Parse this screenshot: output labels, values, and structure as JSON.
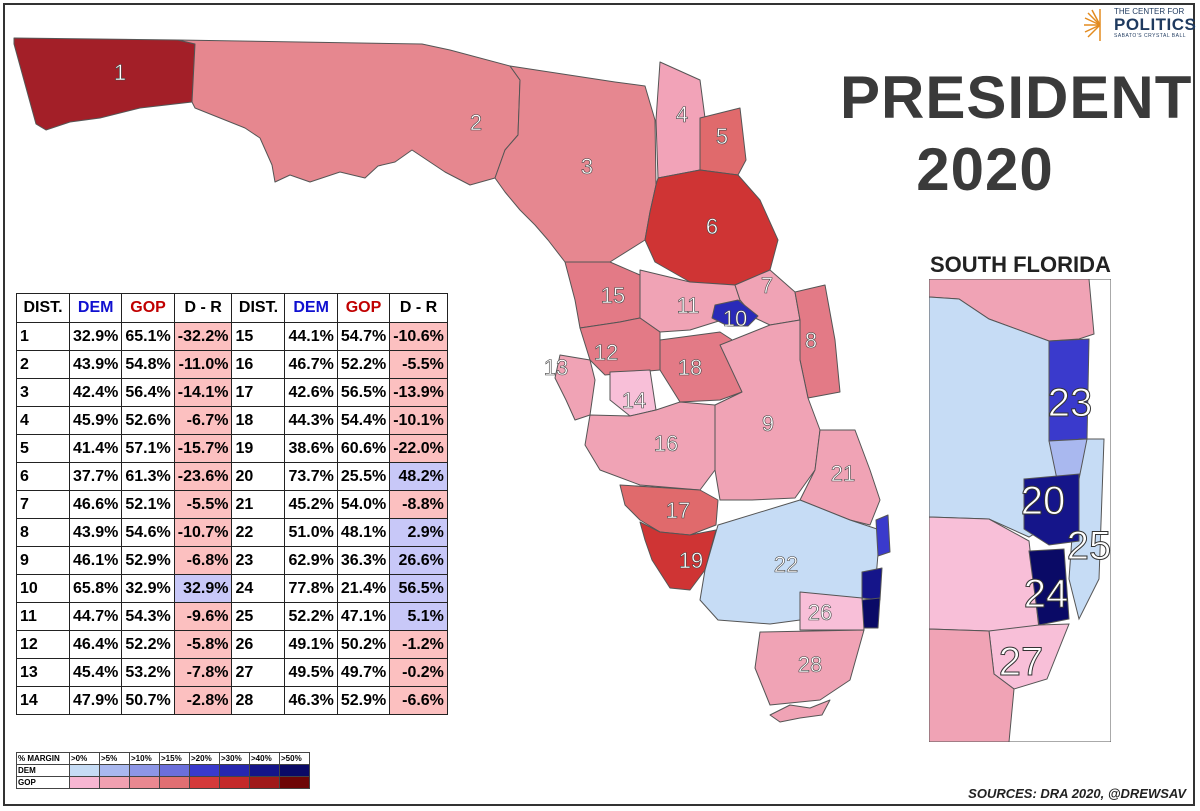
{
  "title": "PRESIDENT 2020",
  "title_line1": "PRESIDENT",
  "title_line2": "2020",
  "inset_title": "SOUTH FLORIDA",
  "sources": "SOURCES: DRA 2020, @DREWSAV",
  "logo": {
    "line1": "THE CENTER FOR",
    "line2": "POLITICS",
    "line3": "SABATO'S CRYSTAL BALL"
  },
  "table": {
    "headers": [
      "DIST.",
      "DEM",
      "GOP",
      "D - R"
    ],
    "rows": [
      {
        "dist": "1",
        "dem": "32.9%",
        "gop": "65.1%",
        "margin": "-32.2%"
      },
      {
        "dist": "2",
        "dem": "43.9%",
        "gop": "54.8%",
        "margin": "-11.0%"
      },
      {
        "dist": "3",
        "dem": "42.4%",
        "gop": "56.4%",
        "margin": "-14.1%"
      },
      {
        "dist": "4",
        "dem": "45.9%",
        "gop": "52.6%",
        "margin": "-6.7%"
      },
      {
        "dist": "5",
        "dem": "41.4%",
        "gop": "57.1%",
        "margin": "-15.7%"
      },
      {
        "dist": "6",
        "dem": "37.7%",
        "gop": "61.3%",
        "margin": "-23.6%"
      },
      {
        "dist": "7",
        "dem": "46.6%",
        "gop": "52.1%",
        "margin": "-5.5%"
      },
      {
        "dist": "8",
        "dem": "43.9%",
        "gop": "54.6%",
        "margin": "-10.7%"
      },
      {
        "dist": "9",
        "dem": "46.1%",
        "gop": "52.9%",
        "margin": "-6.8%"
      },
      {
        "dist": "10",
        "dem": "65.8%",
        "gop": "32.9%",
        "margin": "32.9%"
      },
      {
        "dist": "11",
        "dem": "44.7%",
        "gop": "54.3%",
        "margin": "-9.6%"
      },
      {
        "dist": "12",
        "dem": "46.4%",
        "gop": "52.2%",
        "margin": "-5.8%"
      },
      {
        "dist": "13",
        "dem": "45.4%",
        "gop": "53.2%",
        "margin": "-7.8%"
      },
      {
        "dist": "14",
        "dem": "47.9%",
        "gop": "50.7%",
        "margin": "-2.8%"
      },
      {
        "dist": "15",
        "dem": "44.1%",
        "gop": "54.7%",
        "margin": "-10.6%"
      },
      {
        "dist": "16",
        "dem": "46.7%",
        "gop": "52.2%",
        "margin": "-5.5%"
      },
      {
        "dist": "17",
        "dem": "42.6%",
        "gop": "56.5%",
        "margin": "-13.9%"
      },
      {
        "dist": "18",
        "dem": "44.3%",
        "gop": "54.4%",
        "margin": "-10.1%"
      },
      {
        "dist": "19",
        "dem": "38.6%",
        "gop": "60.6%",
        "margin": "-22.0%"
      },
      {
        "dist": "20",
        "dem": "73.7%",
        "gop": "25.5%",
        "margin": "48.2%"
      },
      {
        "dist": "21",
        "dem": "45.2%",
        "gop": "54.0%",
        "margin": "-8.8%"
      },
      {
        "dist": "22",
        "dem": "51.0%",
        "gop": "48.1%",
        "margin": "2.9%"
      },
      {
        "dist": "23",
        "dem": "62.9%",
        "gop": "36.3%",
        "margin": "26.6%"
      },
      {
        "dist": "24",
        "dem": "77.8%",
        "gop": "21.4%",
        "margin": "56.5%"
      },
      {
        "dist": "25",
        "dem": "52.2%",
        "gop": "47.1%",
        "margin": "5.1%"
      },
      {
        "dist": "26",
        "dem": "49.1%",
        "gop": "50.2%",
        "margin": "-1.2%"
      },
      {
        "dist": "27",
        "dem": "49.5%",
        "gop": "49.7%",
        "margin": "-0.2%"
      },
      {
        "dist": "28",
        "dem": "46.3%",
        "gop": "52.9%",
        "margin": "-6.6%"
      }
    ]
  },
  "legend": {
    "header": "% MARGIN",
    "bins": [
      ">0%",
      ">5%",
      ">10%",
      ">15%",
      ">20%",
      ">30%",
      ">40%",
      ">50%"
    ],
    "dem_label": "DEM",
    "gop_label": "GOP",
    "dem_colors": [
      "#c6dcf5",
      "#a9b8ef",
      "#8d96e6",
      "#6b6fdb",
      "#3a3acc",
      "#2727b0",
      "#15158a",
      "#0a0a66"
    ],
    "gop_colors": [
      "#f7b6d2",
      "#f0a0b0",
      "#e98890",
      "#e06f72",
      "#d43a3a",
      "#c42a2a",
      "#a01a1a",
      "#6e0606"
    ]
  },
  "map_labels": [
    "1",
    "2",
    "3",
    "4",
    "5",
    "6",
    "7",
    "8",
    "9",
    "10",
    "11",
    "12",
    "13",
    "14",
    "15",
    "16",
    "17",
    "18",
    "19",
    "21",
    "22",
    "26",
    "28"
  ],
  "inset_labels": [
    "23",
    "20",
    "25",
    "24",
    "27"
  ],
  "colors": {
    "dem_header": "#1010d0",
    "gop_header": "#c00000",
    "neg_cell": "#fcc0c0",
    "pos_cell": "#c8c8f8"
  }
}
